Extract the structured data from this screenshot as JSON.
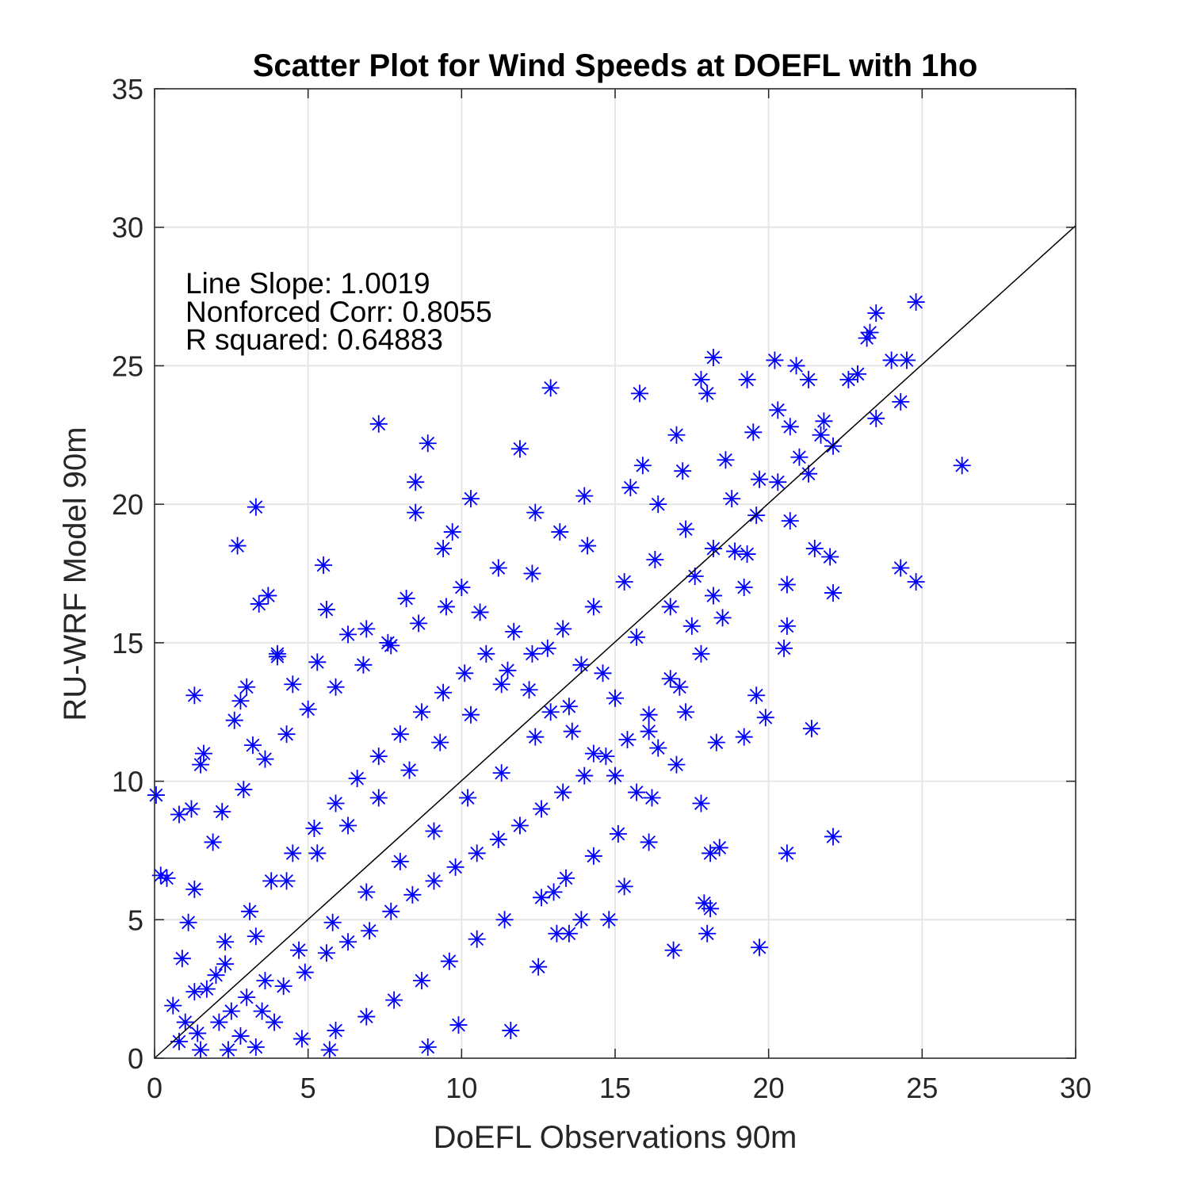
{
  "chart_data": {
    "type": "scatter",
    "title": "Scatter Plot for Wind Speeds at DOEFL with 1ho",
    "xlabel": "DoEFL Observations 90m",
    "ylabel": "RU-WRF Model 90m",
    "xlim": [
      0,
      30
    ],
    "ylim": [
      0,
      35
    ],
    "xticks": [
      "0",
      "5",
      "10",
      "15",
      "20",
      "25",
      "30"
    ],
    "yticks": [
      "0",
      "5",
      "10",
      "15",
      "20",
      "25",
      "30",
      "35"
    ],
    "grid": true,
    "marker": "asterisk",
    "marker_color": "#0000ff",
    "annotations": [
      "Line Slope: 1.0019",
      "Nonforced Corr: 0.8055",
      "R squared: 0.64883"
    ],
    "fit_line": {
      "x": [
        0,
        30
      ],
      "y": [
        0,
        30.057
      ],
      "color": "#000000"
    },
    "series": [
      {
        "values": [
          [
            0.05,
            9.5
          ],
          [
            0.2,
            6.6
          ],
          [
            0.4,
            6.5
          ],
          [
            0.8,
            8.8
          ],
          [
            1.2,
            9.0
          ],
          [
            1.3,
            13.1
          ],
          [
            1.5,
            10.6
          ],
          [
            2.7,
            18.5
          ],
          [
            3.3,
            19.9
          ],
          [
            3.4,
            16.4
          ],
          [
            3.7,
            16.7
          ],
          [
            4.0,
            14.5
          ],
          [
            3.0,
            13.4
          ],
          [
            5.5,
            17.8
          ],
          [
            5.6,
            16.2
          ],
          [
            7.3,
            22.9
          ],
          [
            8.9,
            22.2
          ],
          [
            8.5,
            20.8
          ],
          [
            8.5,
            19.7
          ],
          [
            10.3,
            20.2
          ],
          [
            11.9,
            22.0
          ],
          [
            12.9,
            24.2
          ],
          [
            15.8,
            24.0
          ],
          [
            18.2,
            25.3
          ],
          [
            20.2,
            25.2
          ],
          [
            20.9,
            25.0
          ],
          [
            19.3,
            24.5
          ],
          [
            21.3,
            24.5
          ],
          [
            22.6,
            24.5
          ],
          [
            22.9,
            24.7
          ],
          [
            23.2,
            26.0
          ],
          [
            23.3,
            26.2
          ],
          [
            23.5,
            26.9
          ],
          [
            24.8,
            27.3
          ],
          [
            23.5,
            23.1
          ],
          [
            24.3,
            23.7
          ],
          [
            24.0,
            25.2
          ],
          [
            24.5,
            25.2
          ],
          [
            26.3,
            21.4
          ],
          [
            24.3,
            17.7
          ],
          [
            24.8,
            17.2
          ],
          [
            22.1,
            16.8
          ],
          [
            20.6,
            17.1
          ],
          [
            22.0,
            18.1
          ],
          [
            21.5,
            18.4
          ],
          [
            21.3,
            21.1
          ],
          [
            22.1,
            22.1
          ],
          [
            20.7,
            22.8
          ],
          [
            21.8,
            23.0
          ],
          [
            17.8,
            24.5
          ],
          [
            18.0,
            24.0
          ],
          [
            17.0,
            22.5
          ],
          [
            15.9,
            21.4
          ],
          [
            14.0,
            20.3
          ],
          [
            12.4,
            19.7
          ],
          [
            11.6,
            1.0
          ],
          [
            8.9,
            0.4
          ],
          [
            5.7,
            0.3
          ],
          [
            3.3,
            0.4
          ],
          [
            2.4,
            0.3
          ],
          [
            9.9,
            1.2
          ],
          [
            12.5,
            3.3
          ],
          [
            16.9,
            3.9
          ],
          [
            19.7,
            4.0
          ],
          [
            18.0,
            4.5
          ],
          [
            18.1,
            5.4
          ],
          [
            17.9,
            5.6
          ],
          [
            18.4,
            7.6
          ],
          [
            18.1,
            7.4
          ],
          [
            20.6,
            7.4
          ],
          [
            22.1,
            8.0
          ],
          [
            17.8,
            9.2
          ],
          [
            15.3,
            6.2
          ],
          [
            16.1,
            7.8
          ],
          [
            21.4,
            11.9
          ],
          [
            19.9,
            12.3
          ],
          [
            19.6,
            13.1
          ],
          [
            19.2,
            11.6
          ],
          [
            18.3,
            11.4
          ],
          [
            20.5,
            14.8
          ],
          [
            20.6,
            15.6
          ],
          [
            13.1,
            4.5
          ],
          [
            13.5,
            4.5
          ],
          [
            13.9,
            5.0
          ],
          [
            13.0,
            6.0
          ],
          [
            14.8,
            5.0
          ],
          [
            1.6,
            11.0
          ],
          [
            2.6,
            12.2
          ],
          [
            2.8,
            12.9
          ],
          [
            3.2,
            11.3
          ],
          [
            4.0,
            14.6
          ],
          [
            4.5,
            13.5
          ],
          [
            5.3,
            14.3
          ],
          [
            6.3,
            15.3
          ],
          [
            6.9,
            15.5
          ],
          [
            7.6,
            15.0
          ],
          [
            8.2,
            16.6
          ],
          [
            9.4,
            18.4
          ],
          [
            9.7,
            19.0
          ],
          [
            10.0,
            17.0
          ],
          [
            11.2,
            17.7
          ],
          [
            12.3,
            17.5
          ],
          [
            13.2,
            19.0
          ],
          [
            14.1,
            18.5
          ],
          [
            15.5,
            20.6
          ],
          [
            16.4,
            20.0
          ],
          [
            17.2,
            21.2
          ],
          [
            18.6,
            21.6
          ],
          [
            19.5,
            22.6
          ],
          [
            20.3,
            23.4
          ],
          [
            18.8,
            20.2
          ],
          [
            19.7,
            20.9
          ],
          [
            20.7,
            19.4
          ],
          [
            19.3,
            18.2
          ],
          [
            17.6,
            17.4
          ],
          [
            16.8,
            16.3
          ],
          [
            15.7,
            15.2
          ],
          [
            14.6,
            13.9
          ],
          [
            13.5,
            12.7
          ],
          [
            12.4,
            11.6
          ],
          [
            11.3,
            10.3
          ],
          [
            10.2,
            9.4
          ],
          [
            9.1,
            8.2
          ],
          [
            8.0,
            7.1
          ],
          [
            6.9,
            6.0
          ],
          [
            5.8,
            4.9
          ],
          [
            4.7,
            3.9
          ],
          [
            3.6,
            2.8
          ],
          [
            2.5,
            1.7
          ],
          [
            1.4,
            0.9
          ],
          [
            0.6,
            1.9
          ],
          [
            0.9,
            3.6
          ],
          [
            1.1,
            4.9
          ],
          [
            1.3,
            6.1
          ],
          [
            1.9,
            7.8
          ],
          [
            2.2,
            8.9
          ],
          [
            2.9,
            9.7
          ],
          [
            3.6,
            10.8
          ],
          [
            4.3,
            11.7
          ],
          [
            5.0,
            12.6
          ],
          [
            5.9,
            13.4
          ],
          [
            6.8,
            14.2
          ],
          [
            7.7,
            14.9
          ],
          [
            8.6,
            15.7
          ],
          [
            9.5,
            16.3
          ],
          [
            10.6,
            16.1
          ],
          [
            11.7,
            15.4
          ],
          [
            12.8,
            14.8
          ],
          [
            13.9,
            14.2
          ],
          [
            15.0,
            13.0
          ],
          [
            16.1,
            11.8
          ],
          [
            17.0,
            10.6
          ],
          [
            17.3,
            12.5
          ],
          [
            16.2,
            9.4
          ],
          [
            15.1,
            8.1
          ],
          [
            14.3,
            7.3
          ],
          [
            13.4,
            6.5
          ],
          [
            12.6,
            5.8
          ],
          [
            11.4,
            5.0
          ],
          [
            10.5,
            4.3
          ],
          [
            9.6,
            3.5
          ],
          [
            8.7,
            2.8
          ],
          [
            7.8,
            2.1
          ],
          [
            6.9,
            1.5
          ],
          [
            5.9,
            1.0
          ],
          [
            4.8,
            0.7
          ],
          [
            3.9,
            1.3
          ],
          [
            3.0,
            2.2
          ],
          [
            2.0,
            3.0
          ],
          [
            1.0,
            1.3
          ],
          [
            1.7,
            2.5
          ],
          [
            2.3,
            4.2
          ],
          [
            3.1,
            5.3
          ],
          [
            3.8,
            6.4
          ],
          [
            4.5,
            7.4
          ],
          [
            5.2,
            8.3
          ],
          [
            5.9,
            9.2
          ],
          [
            6.6,
            10.1
          ],
          [
            7.3,
            10.9
          ],
          [
            8.0,
            11.7
          ],
          [
            8.7,
            12.5
          ],
          [
            9.4,
            13.2
          ],
          [
            10.1,
            13.9
          ],
          [
            10.8,
            14.6
          ],
          [
            11.5,
            14.0
          ],
          [
            12.2,
            13.3
          ],
          [
            12.9,
            12.5
          ],
          [
            13.6,
            11.8
          ],
          [
            14.3,
            11.0
          ],
          [
            15.0,
            10.2
          ],
          [
            15.7,
            9.6
          ],
          [
            16.4,
            11.2
          ],
          [
            17.1,
            13.4
          ],
          [
            17.8,
            14.6
          ],
          [
            18.5,
            15.9
          ],
          [
            19.2,
            17.0
          ],
          [
            18.2,
            18.4
          ],
          [
            17.3,
            19.1
          ],
          [
            16.3,
            18.0
          ],
          [
            15.3,
            17.2
          ],
          [
            14.3,
            16.3
          ],
          [
            13.3,
            15.5
          ],
          [
            12.3,
            14.6
          ],
          [
            11.3,
            13.5
          ],
          [
            10.3,
            12.4
          ],
          [
            9.3,
            11.4
          ],
          [
            8.3,
            10.4
          ],
          [
            7.3,
            9.4
          ],
          [
            6.3,
            8.4
          ],
          [
            5.3,
            7.4
          ],
          [
            4.3,
            6.4
          ],
          [
            3.3,
            4.4
          ],
          [
            2.3,
            3.4
          ],
          [
            1.3,
            2.4
          ],
          [
            0.8,
            0.6
          ],
          [
            1.5,
            0.3
          ],
          [
            2.1,
            1.3
          ],
          [
            2.8,
            0.8
          ],
          [
            3.5,
            1.7
          ],
          [
            4.2,
            2.6
          ],
          [
            4.9,
            3.1
          ],
          [
            5.6,
            3.8
          ],
          [
            6.3,
            4.2
          ],
          [
            7.0,
            4.6
          ],
          [
            7.7,
            5.3
          ],
          [
            8.4,
            5.9
          ],
          [
            9.1,
            6.4
          ],
          [
            9.8,
            6.9
          ],
          [
            10.5,
            7.4
          ],
          [
            11.2,
            7.9
          ],
          [
            11.9,
            8.4
          ],
          [
            12.6,
            9.0
          ],
          [
            13.3,
            9.6
          ],
          [
            14.0,
            10.2
          ],
          [
            14.7,
            10.9
          ],
          [
            15.4,
            11.5
          ],
          [
            16.1,
            12.4
          ],
          [
            16.8,
            13.7
          ],
          [
            17.5,
            15.6
          ],
          [
            18.2,
            16.7
          ],
          [
            18.9,
            18.3
          ],
          [
            19.6,
            19.6
          ],
          [
            20.3,
            20.8
          ],
          [
            21.0,
            21.7
          ],
          [
            21.7,
            22.5
          ]
        ]
      }
    ]
  }
}
